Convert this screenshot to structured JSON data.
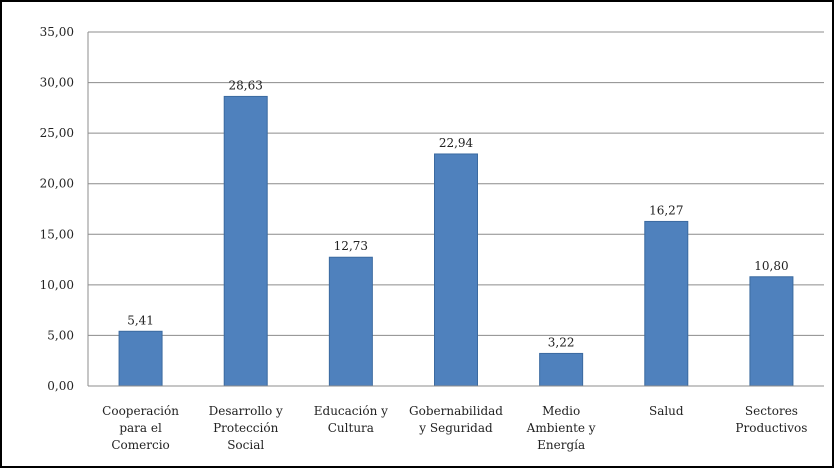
{
  "chart_data": {
    "type": "bar",
    "categories": [
      [
        "Cooperación",
        "para el",
        "Comercio"
      ],
      [
        "Desarrollo y",
        "Protección",
        "Social"
      ],
      [
        "Educación y",
        "Cultura"
      ],
      [
        "Gobernabilidad",
        "y Seguridad"
      ],
      [
        "Medio",
        "Ambiente y",
        "Energía"
      ],
      [
        "Salud"
      ],
      [
        "Sectores",
        "Productivos"
      ]
    ],
    "values": [
      5.41,
      28.63,
      12.73,
      22.94,
      3.22,
      16.27,
      10.8
    ],
    "data_labels": [
      "5,41",
      "28,63",
      "12,73",
      "22,94",
      "3,22",
      "16,27",
      "10,80"
    ],
    "y_ticks": [
      0,
      5,
      10,
      15,
      20,
      25,
      30,
      35
    ],
    "y_tick_labels": [
      "0,00",
      "5,00",
      "10,00",
      "15,00",
      "20,00",
      "25,00",
      "30,00",
      "35,00"
    ],
    "ylim": [
      0,
      35
    ],
    "grid": true,
    "colors": {
      "bar": "#4f81bd",
      "bar_edge": "#3b6aa0",
      "grid": "#8c8c8c",
      "plot_bg": "#ffffff"
    }
  }
}
